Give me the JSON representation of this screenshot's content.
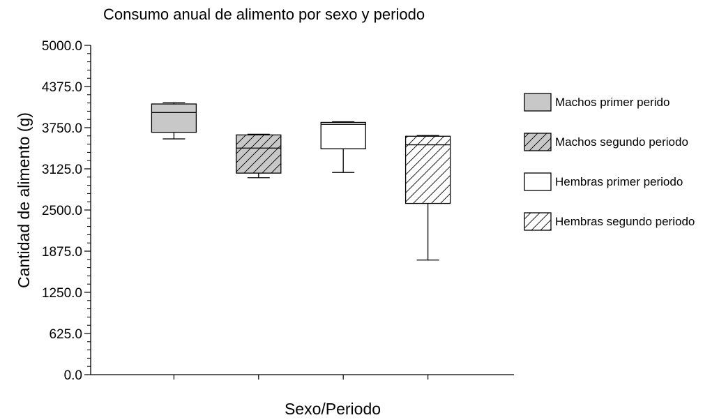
{
  "chart_data": {
    "type": "box",
    "title": "Consumo anual de alimento por sexo y periodo",
    "xlabel": "Sexo/Periodo",
    "ylabel": "Cantidad de alimento (g)",
    "ylim": [
      0,
      5000
    ],
    "y_ticks": [
      "0.0",
      "625.0",
      "1250.0",
      "1875.0",
      "2500.0",
      "3125.0",
      "3750.0",
      "4375.0",
      "5000.0"
    ],
    "legend_position": "right",
    "series": [
      {
        "name": "Machos primer perido",
        "fill": "#c8c8c8",
        "hatch": false,
        "min": 3580,
        "q1": 3680,
        "median": 3980,
        "q3": 4110,
        "max": 4130
      },
      {
        "name": "Machos segundo periodo",
        "fill": "#c8c8c8",
        "hatch": true,
        "min": 2990,
        "q1": 3060,
        "median": 3440,
        "q3": 3640,
        "max": 3650
      },
      {
        "name": "Hembras primer periodo",
        "fill": "#ffffff",
        "hatch": false,
        "min": 3070,
        "q1": 3430,
        "median": 3800,
        "q3": 3830,
        "max": 3840
      },
      {
        "name": "Hembras segundo periodo",
        "fill": "#ffffff",
        "hatch": true,
        "min": 1740,
        "q1": 2600,
        "median": 3490,
        "q3": 3620,
        "max": 3630
      }
    ]
  }
}
